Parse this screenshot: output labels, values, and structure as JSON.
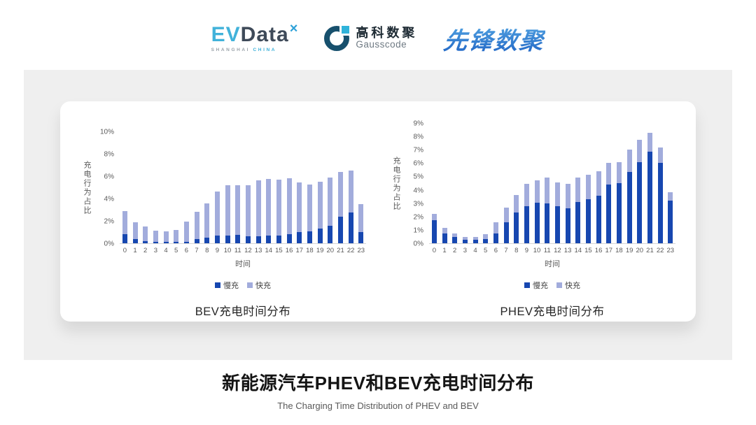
{
  "header": {
    "logos": {
      "evdata": {
        "ev": "EV",
        "data": "Data",
        "mark": "×",
        "sub_left": "SHANGHAI",
        "sub_right": "CHINA"
      },
      "gausscode": {
        "cn": "高科数聚",
        "en": "Gausscode"
      },
      "pioneer": {
        "text": "先锋数聚"
      }
    }
  },
  "footer": {
    "title": "新能源汽车PHEV和BEV充电时间分布",
    "subtitle": "The Charging Time Distribution of PHEV and BEV"
  },
  "colors": {
    "slow": "#1747b0",
    "fast": "#a2acdc",
    "axis_text": "#595959"
  },
  "chart_data": [
    {
      "type": "bar",
      "stacked": true,
      "title": "BEV充电时间分布",
      "xlabel": "时间",
      "ylabel": "充电行为占比",
      "ylim": [
        0,
        10
      ],
      "yticks": [
        0,
        2,
        4,
        6,
        8,
        10
      ],
      "ytick_suffix": "%",
      "grid": false,
      "legend_position": "bottom",
      "categories": [
        "0",
        "1",
        "2",
        "3",
        "4",
        "5",
        "6",
        "7",
        "8",
        "9",
        "10",
        "11",
        "12",
        "13",
        "14",
        "15",
        "16",
        "17",
        "18",
        "19",
        "20",
        "21",
        "22",
        "23"
      ],
      "series": [
        {
          "name": "慢充",
          "color": "#1747b0",
          "values": [
            0.8,
            0.35,
            0.2,
            0.1,
            0.1,
            0.1,
            0.15,
            0.35,
            0.5,
            0.7,
            0.7,
            0.75,
            0.6,
            0.6,
            0.7,
            0.7,
            0.85,
            1.0,
            1.1,
            1.3,
            1.6,
            2.4,
            2.75,
            1.0
          ]
        },
        {
          "name": "快充",
          "color": "#a2acdc",
          "values": [
            2.1,
            1.55,
            1.3,
            1.05,
            1.0,
            1.1,
            1.8,
            2.45,
            3.1,
            3.95,
            4.5,
            4.5,
            4.6,
            5.05,
            5.1,
            5.05,
            5.0,
            4.45,
            4.2,
            4.25,
            4.3,
            4.0,
            3.8,
            2.55
          ]
        }
      ]
    },
    {
      "type": "bar",
      "stacked": true,
      "title": "PHEV充电时间分布",
      "xlabel": "时间",
      "ylabel": "充电行为占比",
      "ylim": [
        0,
        9
      ],
      "yticks": [
        0,
        1,
        2,
        3,
        4,
        5,
        6,
        7,
        8,
        9
      ],
      "ytick_suffix": "%",
      "grid": false,
      "legend_position": "bottom",
      "categories": [
        "0",
        "1",
        "2",
        "3",
        "4",
        "5",
        "6",
        "7",
        "8",
        "9",
        "10",
        "11",
        "12",
        "13",
        "14",
        "15",
        "16",
        "17",
        "18",
        "19",
        "20",
        "21",
        "22",
        "23"
      ],
      "series": [
        {
          "name": "慢充",
          "color": "#1747b0",
          "values": [
            1.75,
            0.75,
            0.45,
            0.25,
            0.25,
            0.3,
            0.75,
            1.6,
            2.3,
            2.8,
            3.05,
            3.0,
            2.8,
            2.65,
            3.1,
            3.3,
            3.6,
            4.4,
            4.55,
            5.35,
            6.1,
            6.9,
            6.05,
            3.2
          ]
        },
        {
          "name": "快充",
          "color": "#a2acdc",
          "values": [
            0.45,
            0.4,
            0.3,
            0.25,
            0.25,
            0.4,
            0.85,
            1.1,
            1.35,
            1.7,
            1.7,
            1.95,
            1.8,
            1.8,
            1.85,
            1.85,
            1.8,
            1.65,
            1.55,
            1.7,
            1.7,
            1.4,
            1.15,
            0.65
          ]
        }
      ]
    }
  ]
}
